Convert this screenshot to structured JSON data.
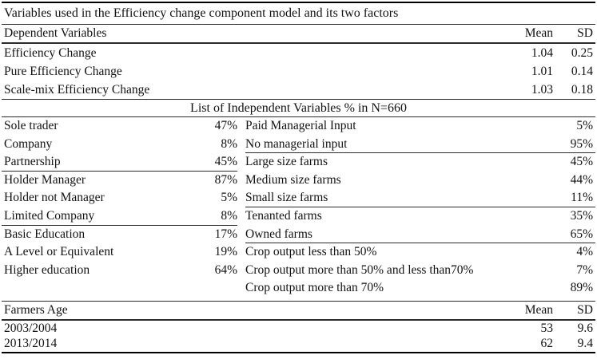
{
  "title": "Variables used in the Efficiency change component model and its two factors",
  "dependent": {
    "header": {
      "label": "Dependent Variables",
      "mean": "Mean",
      "sd": "SD"
    },
    "rows": [
      {
        "label": "Efficiency Change",
        "mean": "1.04",
        "sd": "0.25"
      },
      {
        "label": "Pure Efficiency Change",
        "mean": "1.01",
        "sd": "0.14"
      },
      {
        "label": "Scale-mix Efficiency Change",
        "mean": "1.03",
        "sd": "0.18"
      }
    ]
  },
  "independent": {
    "section_title": "List of Independent Variables % in N=660",
    "rows": [
      {
        "left": {
          "label": "Sole trader",
          "value": "47%"
        },
        "right": {
          "label": "Paid Managerial Input",
          "value": "5%"
        }
      },
      {
        "left": {
          "label": "Company",
          "value": "8%"
        },
        "right": {
          "label": "No managerial input",
          "value": "95%"
        }
      },
      {
        "left": {
          "label": "Partnership",
          "value": "45%"
        },
        "right": {
          "label": "Large size farms",
          "value": "45%"
        }
      },
      {
        "left": {
          "label": "Holder Manager",
          "value": "87%"
        },
        "right": {
          "label": "Medium size farms",
          "value": "44%"
        }
      },
      {
        "left": {
          "label": "Holder not Manager",
          "value": "5%"
        },
        "right": {
          "label": "Small size farms",
          "value": "11%"
        }
      },
      {
        "left": {
          "label": "Limited Company",
          "value": "8%"
        },
        "right": {
          "label": "Tenanted farms",
          "value": "35%"
        }
      },
      {
        "left": {
          "label": "Basic Education",
          "value": "17%"
        },
        "right": {
          "label": "Owned farms",
          "value": "65%"
        }
      },
      {
        "left": {
          "label": "A Level or Equivalent",
          "value": "19%"
        },
        "right": {
          "label": "Crop output less than 50%",
          "value": "4%"
        }
      },
      {
        "left": {
          "label": "Higher education",
          "value": "64%"
        },
        "right": {
          "label": "Crop output more than 50% and less than70%",
          "value": "7%"
        }
      },
      {
        "left": {
          "label": "",
          "value": ""
        },
        "right": {
          "label": "Crop output more than 70%",
          "value": "89%"
        }
      }
    ]
  },
  "age": {
    "header": {
      "label": "Farmers Age",
      "mean": "Mean",
      "sd": "SD"
    },
    "rows": [
      {
        "label": "2003/2004",
        "mean": "53",
        "sd": "9.6"
      },
      {
        "label": "2013/2014",
        "mean": "62",
        "sd": "9.4"
      }
    ]
  }
}
